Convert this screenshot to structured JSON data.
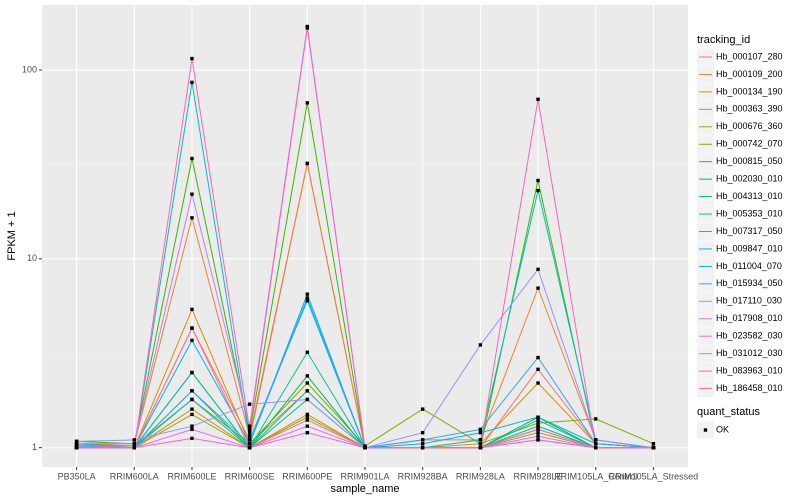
{
  "chart_data": {
    "type": "line",
    "x_label": "sample_name",
    "y_label": "FPKM + 1",
    "categories": [
      "PB350LA",
      "RRIM600LA",
      "RRIM600LE",
      "RRIM600SE",
      "RRIM600PE",
      "RRIM901LA",
      "RRIM928BA",
      "RRIM928LA",
      "RRIM928LE",
      "RRIM105LA_Control",
      "RRIM105LA_Stressed"
    ],
    "log_scale": true,
    "grid": true,
    "ylim": [
      0.79,
      221
    ],
    "yticks": [
      1,
      10,
      100
    ],
    "legend_title": "tracking_id",
    "legend_position": "right",
    "shape_legend": {
      "title": "quant_status",
      "labels": [
        "OK"
      ],
      "color": "#000000"
    },
    "series": [
      {
        "name": "Hb_000107_280",
        "color": "#F8766D",
        "values": [
          1.02,
          1.0,
          4.3,
          1.1,
          32,
          1.0,
          1.0,
          1.0,
          2.6,
          1.05,
          1.0
        ]
      },
      {
        "name": "Hb_000109_200",
        "color": "#EA8331",
        "values": [
          1.05,
          1.05,
          16.5,
          1.15,
          32,
          1.0,
          1.1,
          1.1,
          7.0,
          1.1,
          1.0
        ]
      },
      {
        "name": "Hb_000134_190",
        "color": "#D89000",
        "values": [
          1.03,
          1.0,
          5.4,
          1.05,
          2.0,
          1.0,
          1.0,
          1.05,
          2.2,
          1.05,
          1.0
        ]
      },
      {
        "name": "Hb_000363_390",
        "color": "#C09B00",
        "values": [
          1.0,
          1.0,
          1.6,
          1.0,
          1.5,
          1.0,
          1.0,
          1.0,
          1.3,
          1.0,
          1.0
        ]
      },
      {
        "name": "Hb_000676_360",
        "color": "#A3A500",
        "values": [
          1.0,
          1.0,
          1.5,
          1.0,
          1.45,
          1.0,
          1.0,
          1.0,
          1.2,
          1.0,
          1.0
        ]
      },
      {
        "name": "Hb_000742_070",
        "color": "#7CAE00",
        "values": [
          1.05,
          1.02,
          1.8,
          1.05,
          2.2,
          1.02,
          1.6,
          1.05,
          1.35,
          1.42,
          1.05
        ]
      },
      {
        "name": "Hb_000815_050",
        "color": "#39B600",
        "values": [
          1.08,
          1.05,
          34,
          1.2,
          67,
          1.0,
          1.0,
          1.0,
          26,
          1.05,
          1.0
        ]
      },
      {
        "name": "Hb_002030_010",
        "color": "#00BB4E",
        "values": [
          1.0,
          1.0,
          2.0,
          1.0,
          2.4,
          1.0,
          1.0,
          1.0,
          1.45,
          1.0,
          1.0
        ]
      },
      {
        "name": "Hb_004313_010",
        "color": "#00BF7D",
        "values": [
          1.0,
          1.0,
          2.5,
          1.0,
          1.8,
          1.0,
          1.0,
          1.0,
          1.25,
          1.0,
          1.0
        ]
      },
      {
        "name": "Hb_005353_010",
        "color": "#00C1A3",
        "values": [
          1.0,
          1.0,
          2.5,
          1.0,
          3.2,
          1.0,
          1.0,
          1.0,
          1.4,
          1.0,
          1.0
        ]
      },
      {
        "name": "Hb_007317_050",
        "color": "#00BFC4",
        "values": [
          1.05,
          1.0,
          86,
          1.1,
          6.0,
          1.0,
          1.0,
          1.1,
          23,
          1.1,
          1.0
        ]
      },
      {
        "name": "Hb_009847_010",
        "color": "#00BAE0",
        "values": [
          1.0,
          1.0,
          1.8,
          1.0,
          2.0,
          1.0,
          1.0,
          1.0,
          1.3,
          1.0,
          1.0
        ]
      },
      {
        "name": "Hb_011004_070",
        "color": "#00B0F6",
        "values": [
          1.05,
          1.0,
          3.7,
          1.05,
          6.5,
          1.0,
          1.05,
          1.2,
          1.45,
          1.05,
          1.0
        ]
      },
      {
        "name": "Hb_015934_050",
        "color": "#35A2FF",
        "values": [
          1.02,
          1.0,
          2.0,
          1.05,
          6.2,
          1.0,
          1.1,
          1.25,
          3.0,
          1.05,
          1.0
        ]
      },
      {
        "name": "Hb_017110_030",
        "color": "#9590FF",
        "values": [
          1.08,
          1.1,
          1.3,
          1.7,
          1.8,
          1.0,
          1.2,
          3.5,
          8.8,
          1.1,
          1.0
        ]
      },
      {
        "name": "Hb_017908_010",
        "color": "#C77CFF",
        "values": [
          1.05,
          1.05,
          22,
          1.3,
          170,
          1.0,
          1.0,
          1.0,
          1.15,
          1.0,
          1.0
        ]
      },
      {
        "name": "Hb_023582_030",
        "color": "#E76BF3",
        "values": [
          1.0,
          1.0,
          1.25,
          1.0,
          1.3,
          1.0,
          1.0,
          1.0,
          1.1,
          1.0,
          1.0
        ]
      },
      {
        "name": "Hb_031012_030",
        "color": "#FA62DB",
        "values": [
          1.03,
          1.0,
          1.12,
          1.0,
          1.2,
          1.0,
          1.0,
          1.0,
          1.1,
          1.0,
          1.0
        ]
      },
      {
        "name": "Hb_083963_010",
        "color": "#FF62BC",
        "values": [
          1.0,
          1.0,
          115,
          1.25,
          167,
          1.0,
          1.0,
          1.0,
          70,
          1.0,
          1.0
        ]
      },
      {
        "name": "Hb_186458_010",
        "color": "#FF6C91",
        "values": [
          1.0,
          1.0,
          4.3,
          1.0,
          1.4,
          1.0,
          1.0,
          1.0,
          1.25,
          1.0,
          1.0
        ]
      }
    ]
  }
}
